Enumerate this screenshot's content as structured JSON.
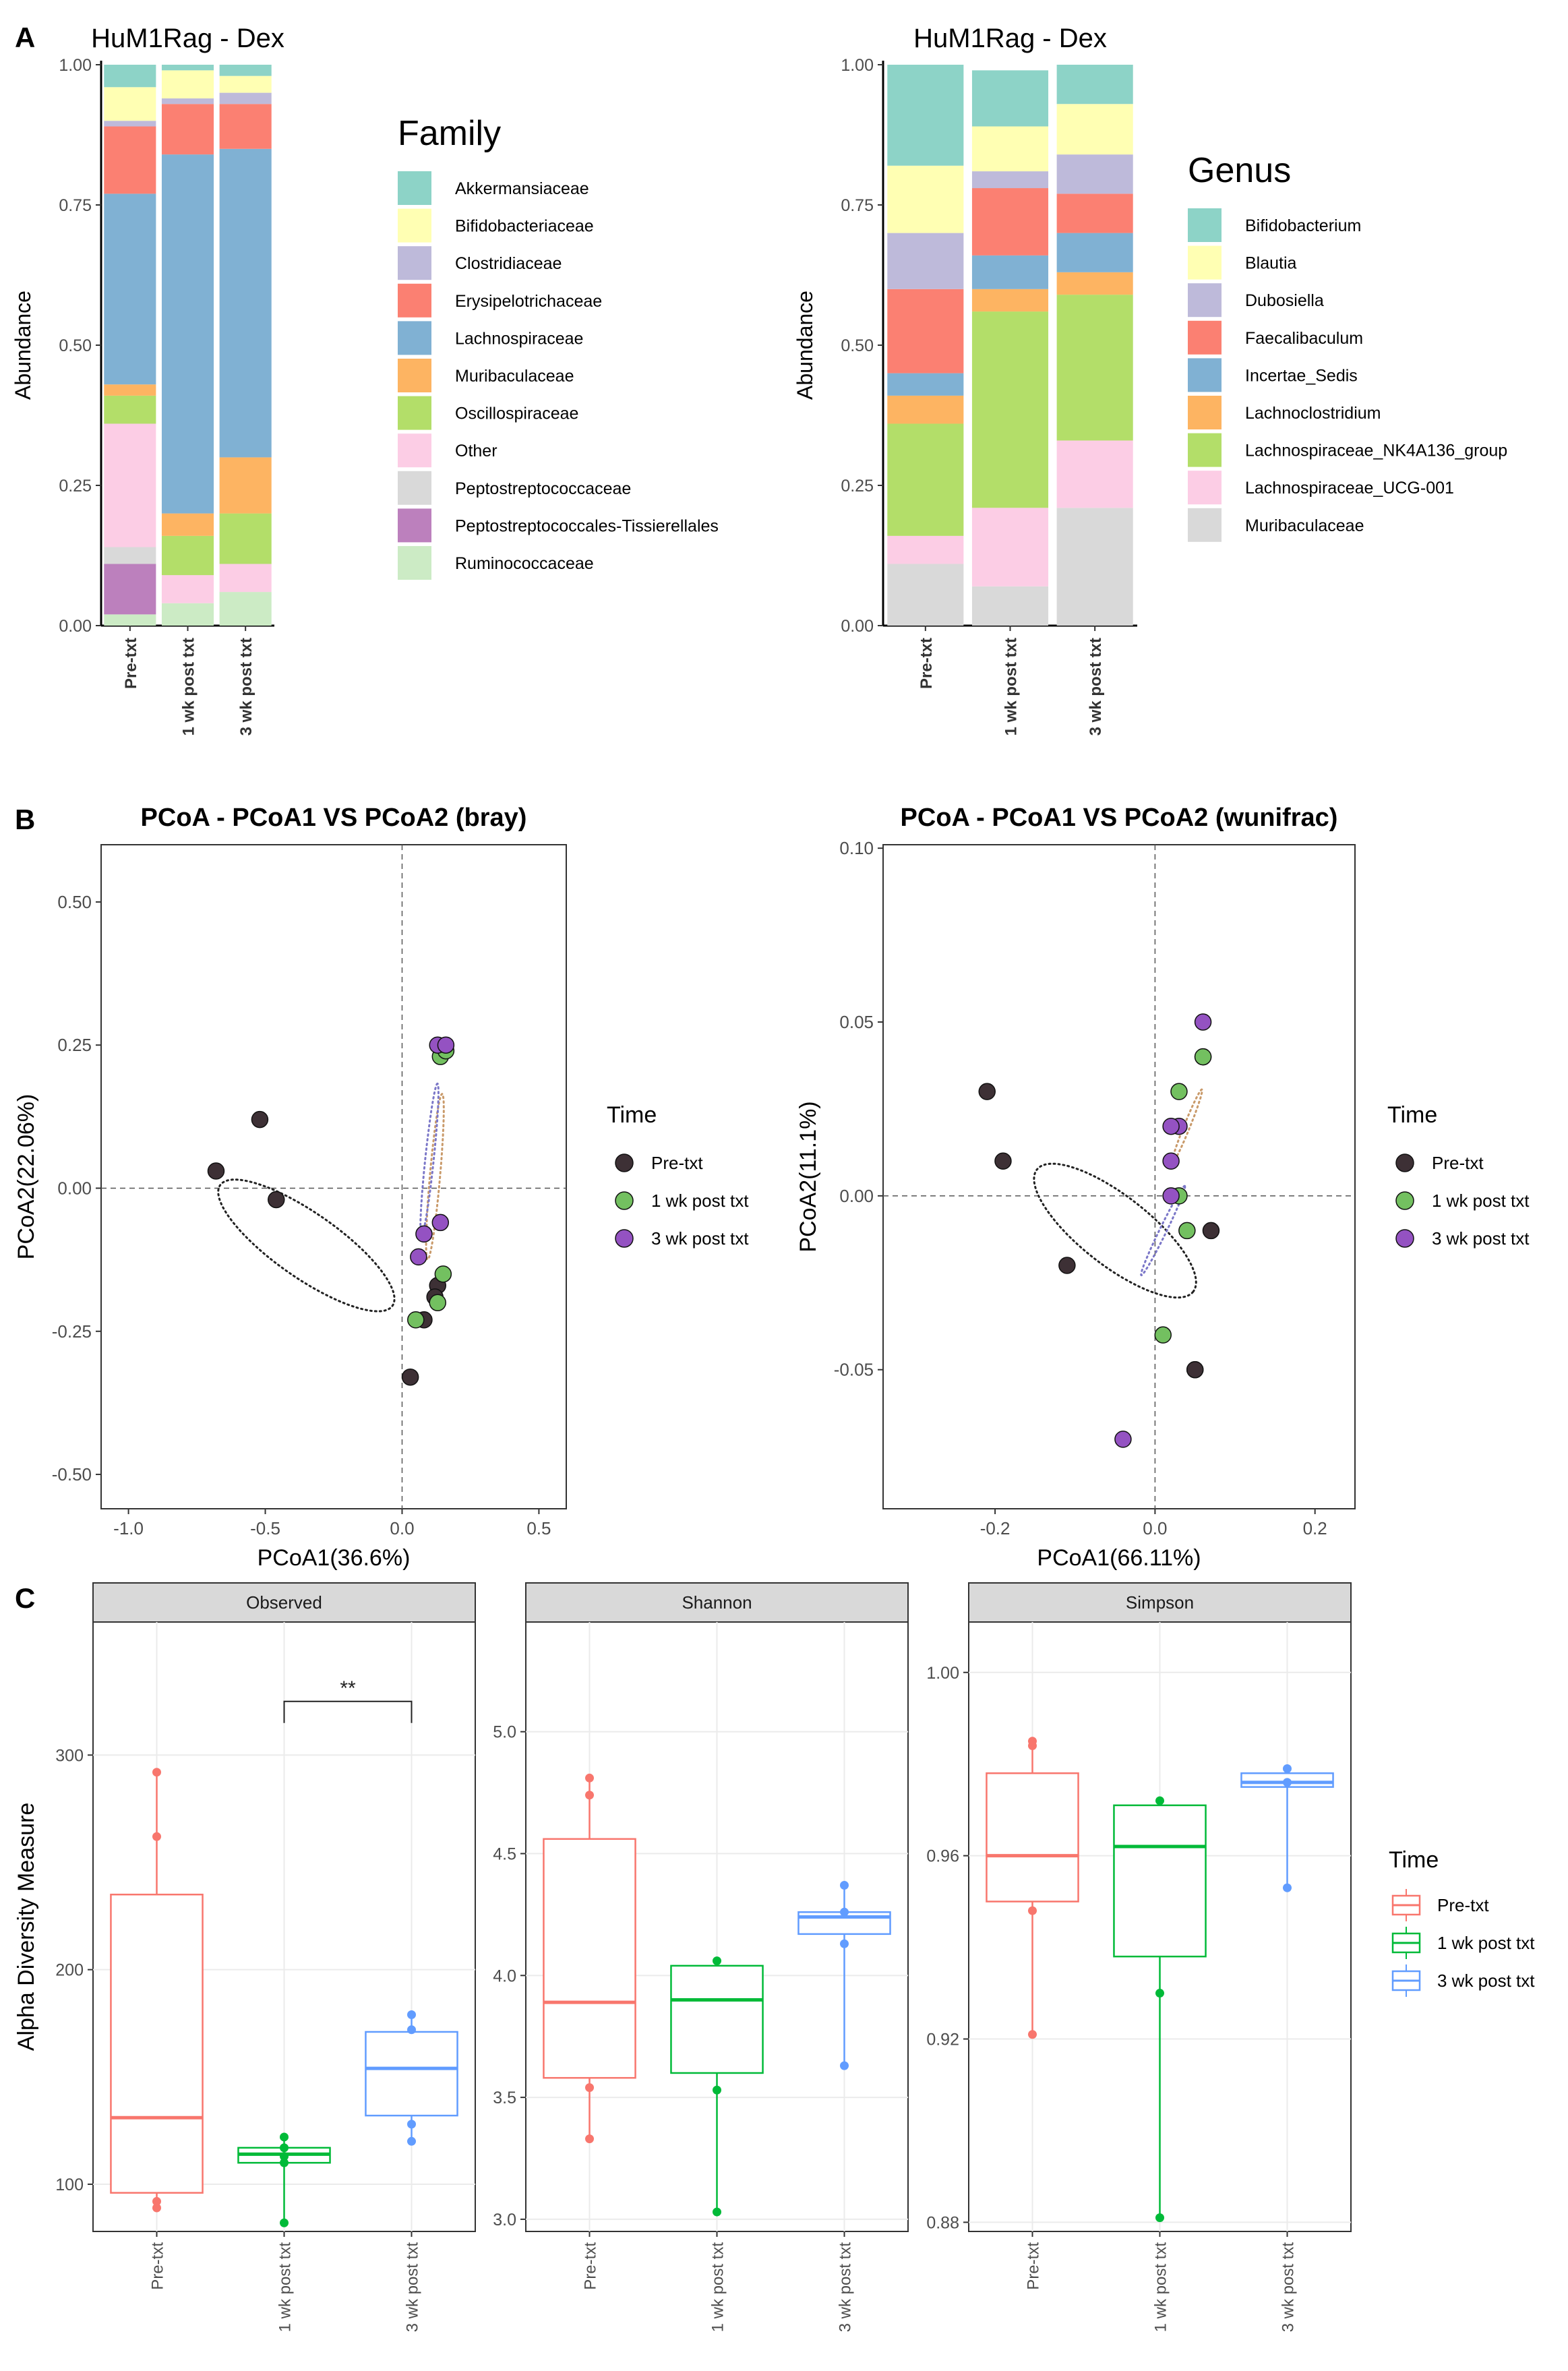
{
  "colors": {
    "family": {
      "Akkermansiaceae": "#8dd3c7",
      "Bifidobacteriaceae": "#ffffb3",
      "Clostridiaceae": "#bebada",
      "Erysipelotrichaceae": "#fb8072",
      "Lachnospiraceae": "#80b1d3",
      "Muribaculaceae": "#fdb462",
      "Oscillospiraceae": "#b3de69",
      "Other": "#fccde5",
      "Peptostreptococcaceae": "#d9d9d9",
      "Peptostreptococcales-Tissierellales": "#bc80bd",
      "Ruminococcaceae": "#ccebc5"
    },
    "genus": {
      "Bifidobacterium": "#8dd3c7",
      "Blautia": "#ffffb3",
      "Dubosiella": "#bebada",
      "Faecalibaculum": "#fb8072",
      "Incertae_Sedis": "#80b1d3",
      "Lachnoclostridium": "#fdb462",
      "Lachnospiraceae_NK4A136_group": "#b3de69",
      "Lachnospiraceae_UCG-001": "#fccde5",
      "Muribaculaceae": "#d9d9d9"
    },
    "pcoa_time": {
      "Pre-txt": "#3d3035",
      "1 wk post txt": "#73c060",
      "3 wk post txt": "#9452c2"
    },
    "pcoa_ellipse": {
      "Pre-txt": "#222222",
      "1 wk post txt": "#c99a6a",
      "3 wk post txt": "#7b77c8"
    },
    "box_time": {
      "Pre-txt": "#f8766d",
      "1 wk post txt": "#00ba38",
      "3 wk post txt": "#619cff"
    }
  },
  "panel_labels": {
    "a": "A",
    "b": "B",
    "c": "C"
  },
  "chart_data": [
    {
      "type": "bar",
      "stacked": true,
      "title": "HuM1Rag - Dex",
      "ylabel": "Abundance",
      "legend_title": "Family",
      "categories": [
        "Pre-txt",
        "1 wk post txt",
        "3 wk post txt"
      ],
      "yticks": [
        "0.00",
        "0.25",
        "0.50",
        "0.75",
        "1.00"
      ],
      "ylim": [
        0,
        1
      ],
      "series": [
        {
          "name": "Ruminococcaceae",
          "values": [
            0.02,
            0.04,
            0.06
          ]
        },
        {
          "name": "Peptostreptococcales-Tissierellales",
          "values": [
            0.09,
            0,
            0
          ]
        },
        {
          "name": "Peptostreptococcaceae",
          "values": [
            0.03,
            0,
            0
          ]
        },
        {
          "name": "Other",
          "values": [
            0.22,
            0.05,
            0.05
          ]
        },
        {
          "name": "Oscillospiraceae",
          "values": [
            0.05,
            0.07,
            0.09
          ]
        },
        {
          "name": "Muribaculaceae",
          "values": [
            0.02,
            0.04,
            0.1
          ]
        },
        {
          "name": "Lachnospiraceae",
          "values": [
            0.34,
            0.64,
            0.55
          ]
        },
        {
          "name": "Erysipelotrichaceae",
          "values": [
            0.12,
            0.09,
            0.08
          ]
        },
        {
          "name": "Clostridiaceae",
          "values": [
            0.01,
            0.01,
            0.02
          ]
        },
        {
          "name": "Bifidobacteriaceae",
          "values": [
            0.06,
            0.05,
            0.03
          ]
        },
        {
          "name": "Akkermansiaceae",
          "values": [
            0.04,
            0.01,
            0.02
          ]
        }
      ],
      "legend_order": [
        "Akkermansiaceae",
        "Bifidobacteriaceae",
        "Clostridiaceae",
        "Erysipelotrichaceae",
        "Lachnospiraceae",
        "Muribaculaceae",
        "Oscillospiraceae",
        "Other",
        "Peptostreptococcaceae",
        "Peptostreptococcales-Tissierellales",
        "Ruminococcaceae"
      ]
    },
    {
      "type": "bar",
      "stacked": true,
      "title": "HuM1Rag - Dex",
      "ylabel": "Abundance",
      "legend_title": "Genus",
      "categories": [
        "Pre-txt",
        "1 wk post txt",
        "3 wk post txt"
      ],
      "yticks": [
        "0.00",
        "0.25",
        "0.50",
        "0.75",
        "1.00"
      ],
      "ylim": [
        0,
        1
      ],
      "series": [
        {
          "name": "Muribaculaceae",
          "values": [
            0.11,
            0.07,
            0.21
          ]
        },
        {
          "name": "Lachnospiraceae_UCG-001",
          "values": [
            0.05,
            0.14,
            0.12
          ]
        },
        {
          "name": "Lachnospiraceae_NK4A136_group",
          "values": [
            0.2,
            0.35,
            0.26
          ]
        },
        {
          "name": "Lachnoclostridium",
          "values": [
            0.05,
            0.04,
            0.04
          ]
        },
        {
          "name": "Incertae_Sedis",
          "values": [
            0.04,
            0.06,
            0.07
          ]
        },
        {
          "name": "Faecalibaculum",
          "values": [
            0.15,
            0.12,
            0.07
          ]
        },
        {
          "name": "Dubosiella",
          "values": [
            0.1,
            0.03,
            0.07
          ]
        },
        {
          "name": "Blautia",
          "values": [
            0.12,
            0.08,
            0.09
          ]
        },
        {
          "name": "Bifidobacterium",
          "values": [
            0.18,
            0.1,
            0.07
          ]
        }
      ],
      "legend_order": [
        "Bifidobacterium",
        "Blautia",
        "Dubosiella",
        "Faecalibaculum",
        "Incertae_Sedis",
        "Lachnoclostridium",
        "Lachnospiraceae_NK4A136_group",
        "Lachnospiraceae_UCG-001",
        "Muribaculaceae"
      ]
    },
    {
      "type": "scatter",
      "title": "PCoA - PCoA1 VS PCoA2 (bray)",
      "xlabel": "PCoA1(36.6%)",
      "ylabel": "PCoA2(22.06%)",
      "xlim": [
        -1.1,
        0.6
      ],
      "ylim": [
        -0.56,
        0.6
      ],
      "xticks": [
        -1.0,
        -0.5,
        0.0,
        0.5
      ],
      "xtick_labels": [
        "-1.0",
        "-0.5",
        "0.0",
        "0.5"
      ],
      "yticks": [
        -0.5,
        -0.25,
        0,
        0.25,
        0.5
      ],
      "ytick_labels": [
        "-0.50",
        "-0.25",
        "0.00",
        "0.25",
        "0.50"
      ],
      "legend_title": "Time",
      "groups": [
        "Pre-txt",
        "1 wk post txt",
        "3 wk post txt"
      ],
      "series": [
        {
          "name": "Pre-txt",
          "points": [
            [
              -0.52,
              0.12
            ],
            [
              -0.68,
              0.03
            ],
            [
              -0.46,
              -0.02
            ],
            [
              0.08,
              -0.23
            ],
            [
              0.13,
              -0.17
            ],
            [
              0.12,
              -0.19
            ],
            [
              0.03,
              -0.33
            ]
          ]
        },
        {
          "name": "1 wk post txt",
          "points": [
            [
              0.14,
              0.23
            ],
            [
              0.16,
              0.24
            ],
            [
              0.15,
              -0.15
            ],
            [
              0.13,
              -0.2
            ],
            [
              0.05,
              -0.23
            ]
          ]
        },
        {
          "name": "3 wk post txt",
          "points": [
            [
              0.13,
              0.25
            ],
            [
              0.16,
              0.25
            ],
            [
              0.14,
              -0.06
            ],
            [
              0.08,
              -0.08
            ],
            [
              0.06,
              -0.12
            ]
          ]
        }
      ],
      "ellipses": [
        {
          "name": "Pre-txt",
          "center": [
            -0.35,
            -0.1
          ],
          "rx": 0.62,
          "ry": 0.19,
          "angle": -35
        },
        {
          "name": "1 wk post txt",
          "center": [
            0.12,
            0.02
          ],
          "rx": 0.49,
          "ry": 0.03,
          "angle": 85
        },
        {
          "name": "3 wk post txt",
          "center": [
            0.1,
            0.05
          ],
          "rx": 0.45,
          "ry": 0.025,
          "angle": 84
        }
      ]
    },
    {
      "type": "scatter",
      "title": "PCoA - PCoA1 VS PCoA2 (wunifrac)",
      "xlabel": "PCoA1(66.11%)",
      "ylabel": "PCoA2(11.1%)",
      "xlim": [
        -0.34,
        0.25
      ],
      "ylim": [
        -0.09,
        0.101
      ],
      "xticks": [
        -0.2,
        0.0,
        0.2
      ],
      "xtick_labels": [
        "-0.2",
        "0.0",
        "0.2"
      ],
      "yticks": [
        -0.05,
        0,
        0.05,
        0.1
      ],
      "ytick_labels": [
        "-0.05",
        "0.00",
        "0.05",
        "0.10"
      ],
      "legend_title": "Time",
      "groups": [
        "Pre-txt",
        "1 wk post txt",
        "3 wk post txt"
      ],
      "series": [
        {
          "name": "Pre-txt",
          "points": [
            [
              -0.21,
              0.03
            ],
            [
              -0.19,
              0.01
            ],
            [
              -0.11,
              -0.02
            ],
            [
              0.07,
              -0.01
            ],
            [
              0.05,
              -0.05
            ],
            [
              0.05,
              -0.05
            ]
          ]
        },
        {
          "name": "1 wk post txt",
          "points": [
            [
              0.06,
              0.04
            ],
            [
              0.06,
              0.04
            ],
            [
              0.03,
              0.03
            ],
            [
              0.03,
              0.0
            ],
            [
              0.04,
              -0.01
            ],
            [
              0.01,
              -0.04
            ]
          ]
        },
        {
          "name": "3 wk post txt",
          "points": [
            [
              0.06,
              0.05
            ],
            [
              0.03,
              0.02
            ],
            [
              0.02,
              0.02
            ],
            [
              0.02,
              0.01
            ],
            [
              0.02,
              0.0
            ],
            [
              -0.04,
              -0.07
            ]
          ]
        }
      ],
      "ellipses": [
        {
          "name": "Pre-txt",
          "center": [
            -0.05,
            -0.01
          ],
          "rx": 0.2,
          "ry": 0.07,
          "angle": -38
        },
        {
          "name": "1 wk post txt",
          "center": [
            0.04,
            0.02
          ],
          "rx": 0.08,
          "ry": 0.006,
          "angle": 68
        },
        {
          "name": "3 wk post txt",
          "center": [
            0.01,
            -0.01
          ],
          "rx": 0.1,
          "ry": 0.007,
          "angle": 64
        }
      ]
    },
    {
      "type": "box",
      "ylabel": "Alpha Diversity Measure",
      "legend_title": "Time",
      "categories": [
        "Pre-txt",
        "1 wk post txt",
        "3 wk post txt"
      ],
      "panels": [
        {
          "title": "Observed",
          "ylim": [
            78,
            362
          ],
          "yticks": [
            100,
            200,
            300
          ],
          "ytick_labels": [
            "100",
            "200",
            "300"
          ],
          "boxes": [
            {
              "q1": 96,
              "median": 131,
              "q3": 235,
              "min": 89,
              "max": 292,
              "points": [
                292,
                262,
                92,
                89
              ]
            },
            {
              "q1": 110,
              "median": 114,
              "q3": 117,
              "min": 82,
              "max": 122,
              "points": [
                122,
                117,
                113,
                110,
                82
              ]
            },
            {
              "q1": 132,
              "median": 154,
              "q3": 171,
              "min": 120,
              "max": 179,
              "points": [
                179,
                172,
                128,
                120
              ]
            }
          ],
          "annotation": {
            "label": "**",
            "from": 1,
            "to": 2,
            "y": 325
          }
        },
        {
          "title": "Shannon",
          "ylim": [
            2.95,
            5.45
          ],
          "yticks": [
            3.0,
            3.5,
            4.0,
            4.5,
            5.0
          ],
          "ytick_labels": [
            "3.0",
            "3.5",
            "4.0",
            "4.5",
            "5.0"
          ],
          "boxes": [
            {
              "q1": 3.58,
              "median": 3.89,
              "q3": 4.56,
              "min": 3.33,
              "max": 4.81,
              "points": [
                4.81,
                4.74,
                3.54,
                3.33
              ]
            },
            {
              "q1": 3.6,
              "median": 3.9,
              "q3": 4.04,
              "min": 3.03,
              "max": 4.06,
              "points": [
                4.06,
                3.53,
                3.03
              ]
            },
            {
              "q1": 4.17,
              "median": 4.24,
              "q3": 4.26,
              "min": 3.63,
              "max": 4.37,
              "points": [
                4.37,
                4.26,
                4.13,
                3.63
              ]
            }
          ]
        },
        {
          "title": "Simpson",
          "ylim": [
            0.878,
            1.011
          ],
          "yticks": [
            0.88,
            0.92,
            0.96,
            1.0
          ],
          "ytick_labels": [
            "0.88",
            "0.92",
            "0.96",
            "1.00"
          ],
          "boxes": [
            {
              "q1": 0.95,
              "median": 0.96,
              "q3": 0.978,
              "min": 0.921,
              "max": 0.985,
              "points": [
                0.985,
                0.984,
                0.948,
                0.921
              ]
            },
            {
              "q1": 0.938,
              "median": 0.962,
              "q3": 0.971,
              "min": 0.881,
              "max": 0.972,
              "points": [
                0.972,
                0.93,
                0.881
              ]
            },
            {
              "q1": 0.975,
              "median": 0.976,
              "q3": 0.978,
              "min": 0.953,
              "max": 0.979,
              "points": [
                0.979,
                0.976,
                0.953
              ]
            }
          ]
        }
      ]
    }
  ]
}
